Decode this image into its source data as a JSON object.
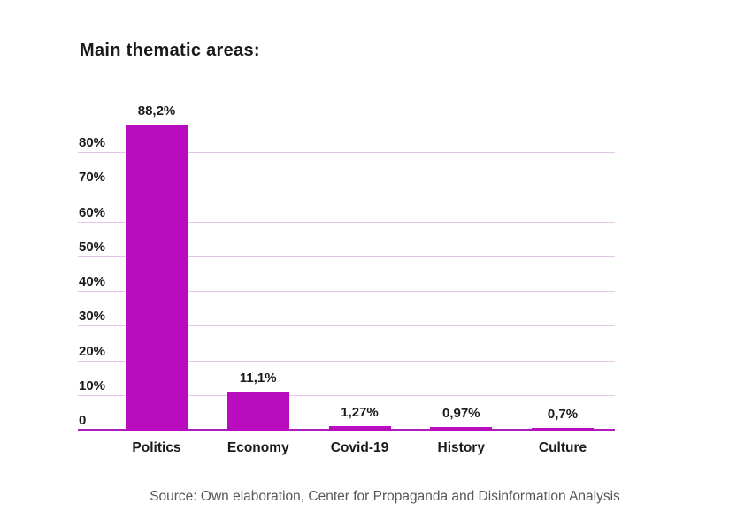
{
  "title": "Main thematic areas:",
  "source": "Source: Own elaboration, Center for Propaganda and Disinformation Analysis",
  "colors": {
    "bar": "#b80cbe",
    "axis_line": "#b01cb8",
    "gridline": "#e6c4e8",
    "text": "#1a1a1a",
    "source_text": "#575757",
    "background": "#ffffff"
  },
  "chart_data": {
    "type": "bar",
    "title": "Main thematic areas:",
    "categories": [
      "Politics",
      "Economy",
      "Covid-19",
      "History",
      "Culture"
    ],
    "values": [
      88.2,
      11.1,
      1.27,
      0.97,
      0.7
    ],
    "value_labels": [
      "88,2%",
      "11,1%",
      "1,27%",
      "0,97%",
      "0,7%"
    ],
    "y_ticks": [
      {
        "value": 0,
        "label": "0"
      },
      {
        "value": 10,
        "label": "10%"
      },
      {
        "value": 20,
        "label": "20%"
      },
      {
        "value": 30,
        "label": "30%"
      },
      {
        "value": 40,
        "label": "40%"
      },
      {
        "value": 50,
        "label": "50%"
      },
      {
        "value": 60,
        "label": "60%"
      },
      {
        "value": 70,
        "label": "70%"
      },
      {
        "value": 80,
        "label": "80%"
      }
    ],
    "ylim": [
      0,
      91
    ],
    "xlabel": "",
    "ylabel": "",
    "grid": true,
    "legend": "none",
    "annotation": "Source: Own elaboration, Center for Propaganda and Disinformation Analysis"
  }
}
